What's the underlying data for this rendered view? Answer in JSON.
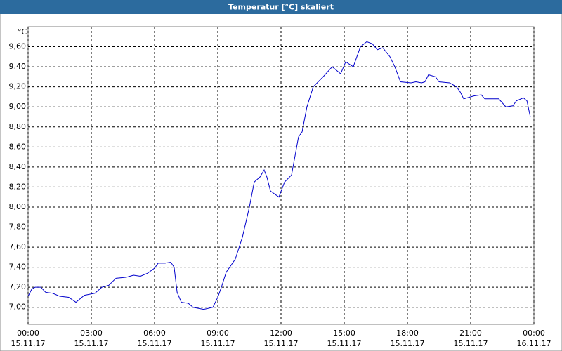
{
  "chart_data": {
    "type": "line",
    "title": "Temperatur [°C] skaliert",
    "y_unit_label": "°C",
    "x": [
      0,
      0.17,
      0.33,
      0.6,
      0.83,
      1.17,
      1.5,
      1.93,
      2.27,
      2.67,
      3.17,
      3.5,
      3.83,
      4.17,
      4.67,
      5,
      5.33,
      5.67,
      6,
      6.17,
      6.5,
      6.77,
      6.93,
      7.07,
      7.27,
      7.6,
      7.83,
      8.33,
      8.77,
      9,
      9.17,
      9.4,
      9.83,
      10.17,
      10.5,
      10.73,
      11,
      11.2,
      11.33,
      11.5,
      11.9,
      12.17,
      12.5,
      12.83,
      13,
      13.23,
      13.53,
      14,
      14.43,
      14.83,
      15.07,
      15.43,
      15.77,
      16.07,
      16.33,
      16.57,
      16.83,
      17.17,
      17.4,
      17.67,
      18.17,
      18.4,
      18.67,
      18.83,
      19,
      19.33,
      19.5,
      20,
      20.33,
      20.5,
      20.67,
      21.17,
      21.5,
      21.67,
      22.33,
      22.67,
      23,
      23.17,
      23.5,
      23.67,
      23.83
    ],
    "series": [
      {
        "color": "#0000cc",
        "values": [
          7.11,
          7.18,
          7.2,
          7.2,
          7.15,
          7.14,
          7.11,
          7.1,
          7.05,
          7.12,
          7.14,
          7.2,
          7.22,
          7.29,
          7.3,
          7.32,
          7.31,
          7.34,
          7.39,
          7.44,
          7.44,
          7.45,
          7.4,
          7.15,
          7.05,
          7.04,
          7.0,
          6.98,
          7.0,
          7.1,
          7.2,
          7.35,
          7.48,
          7.7,
          8.0,
          8.25,
          8.3,
          8.37,
          8.3,
          8.16,
          8.1,
          8.25,
          8.32,
          8.7,
          8.75,
          9.0,
          9.2,
          9.3,
          9.4,
          9.33,
          9.45,
          9.4,
          9.6,
          9.65,
          9.63,
          9.57,
          9.59,
          9.5,
          9.4,
          9.25,
          9.24,
          9.25,
          9.24,
          9.25,
          9.32,
          9.3,
          9.25,
          9.24,
          9.2,
          9.15,
          9.08,
          9.11,
          9.12,
          9.08,
          9.08,
          9.0,
          9.01,
          9.06,
          9.09,
          9.06,
          8.9
        ]
      }
    ],
    "xlim": [
      0,
      24
    ],
    "xticks": [
      {
        "value": 0,
        "label": "00:00"
      },
      {
        "value": 3,
        "label": "03:00"
      },
      {
        "value": 6,
        "label": "06:00"
      },
      {
        "value": 9,
        "label": "09:00"
      },
      {
        "value": 12,
        "label": "12:00"
      },
      {
        "value": 15,
        "label": "15:00"
      },
      {
        "value": 18,
        "label": "18:00"
      },
      {
        "value": 21,
        "label": "21:00"
      },
      {
        "value": 24,
        "label": "00:00"
      }
    ],
    "xtick_dates": [
      "15.11.17",
      "15.11.17",
      "15.11.17",
      "15.11.17",
      "15.11.17",
      "15.11.17",
      "15.11.17",
      "15.11.17",
      "16.11.17"
    ],
    "ylim": [
      6.83,
      9.8
    ],
    "yticks": [
      {
        "value": 7.0,
        "label": "7,00"
      },
      {
        "value": 7.2,
        "label": "7,20"
      },
      {
        "value": 7.4,
        "label": "7,40"
      },
      {
        "value": 7.6,
        "label": "7,60"
      },
      {
        "value": 7.8,
        "label": "7,80"
      },
      {
        "value": 8.0,
        "label": "8,00"
      },
      {
        "value": 8.2,
        "label": "8,20"
      },
      {
        "value": 8.4,
        "label": "8,40"
      },
      {
        "value": 8.6,
        "label": "8,60"
      },
      {
        "value": 8.8,
        "label": "8,80"
      },
      {
        "value": 9.0,
        "label": "9,00"
      },
      {
        "value": 9.2,
        "label": "9,20"
      },
      {
        "value": 9.4,
        "label": "9,40"
      },
      {
        "value": 9.6,
        "label": "9,60"
      }
    ],
    "grid": true
  }
}
